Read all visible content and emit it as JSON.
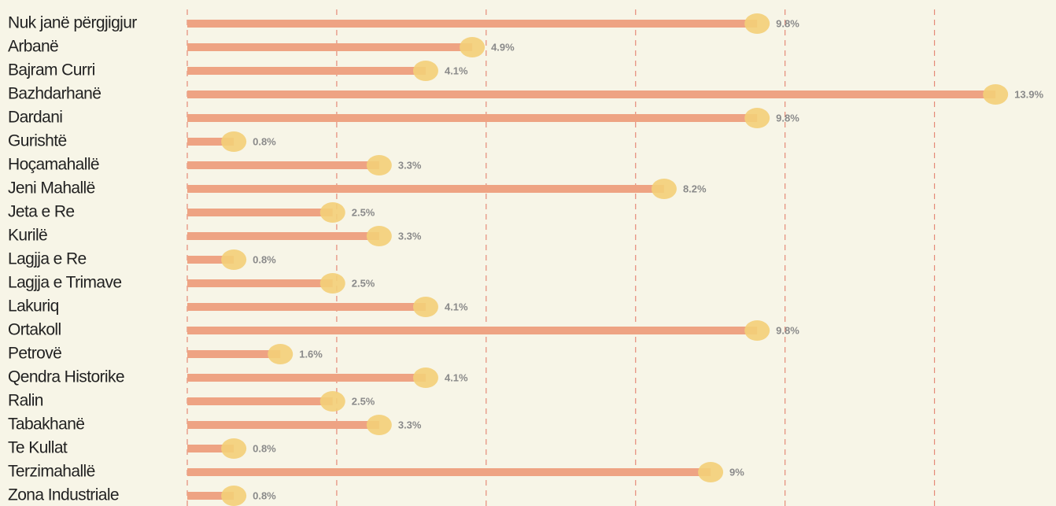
{
  "chart_data": {
    "type": "lollipop-bar",
    "categories": [
      "Nuk janë përgjigjur",
      "Arbanë",
      "Bajram Curri",
      "Bazhdarhanë",
      "Dardani",
      "Gurishtë",
      "Hoçamahallë",
      "Jeni Mahallë",
      "Jeta e Re",
      "Kurilë",
      "Lagjja e Re",
      "Lagjja e Trimave",
      "Lakuriq",
      "Ortakoll",
      "Petrovë",
      "Qendra Historike",
      "Ralin",
      "Tabakhanë",
      "Te Kullat",
      "Terzimahallë",
      "Zona Industriale"
    ],
    "values": [
      9.8,
      4.9,
      4.1,
      13.9,
      9.8,
      0.8,
      3.3,
      8.2,
      2.5,
      3.3,
      0.8,
      2.5,
      4.1,
      9.8,
      1.6,
      4.1,
      2.5,
      3.3,
      0.8,
      9,
      0.8
    ],
    "value_labels": [
      "9.8%",
      "4.9%",
      "4.1%",
      "13.9%",
      "9.8%",
      "0.8%",
      "3.3%",
      "8.2%",
      "2.5%",
      "3.3%",
      "0.8%",
      "2.5%",
      "4.1%",
      "9.8%",
      "1.6%",
      "4.1%",
      "2.5%",
      "3.3%",
      "0.8%",
      "9%",
      "0.8%"
    ],
    "color": "#eea383",
    "marker_color": "#f3cf78",
    "xlim": [
      0,
      14.94
    ],
    "xticks": [
      0,
      2.57,
      5.14,
      7.71,
      10.28,
      12.85
    ],
    "grid": true
  }
}
